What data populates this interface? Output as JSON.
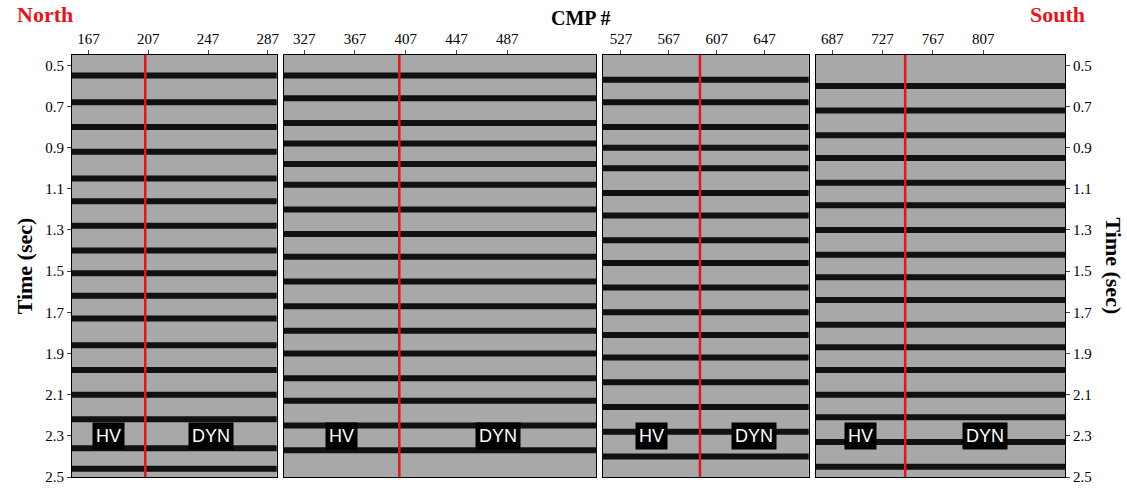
{
  "chart_data": {
    "type": "seismic_section",
    "title": "CMP #",
    "y_title": "Time (sec)",
    "north": "North",
    "south": "South",
    "color": "#e8141b",
    "ylim": [
      0.45,
      2.5
    ],
    "yticks": [
      0.5,
      0.7,
      0.9,
      1.1,
      1.3,
      1.5,
      1.7,
      1.9,
      2.1,
      2.3,
      2.5
    ],
    "panels": [
      {
        "xlim": [
          156,
          293
        ],
        "xticks": [
          167,
          207,
          247,
          287
        ],
        "boundary_cmp": 205,
        "labels": [
          "HV",
          "DYN"
        ],
        "reflector_times": [
          0.55,
          0.68,
          0.8,
          0.92,
          1.05,
          1.16,
          1.28,
          1.4,
          1.51,
          1.62,
          1.73,
          1.86,
          1.98,
          2.1,
          2.22,
          2.36,
          2.46
        ]
      },
      {
        "xlim": [
          311,
          557
        ],
        "xticks": [
          327,
          367,
          407,
          447,
          487
        ],
        "boundary_cmp": 402,
        "labels": [
          "HV",
          "DYN"
        ],
        "reflector_times": [
          0.55,
          0.66,
          0.78,
          0.88,
          0.98,
          1.08,
          1.2,
          1.32,
          1.43,
          1.55,
          1.67,
          1.79,
          1.9,
          2.02,
          2.13,
          2.25,
          2.37
        ]
      },
      {
        "xlim": [
          512,
          684
        ],
        "xticks": [
          527,
          567,
          607,
          647
        ],
        "boundary_cmp": 593,
        "labels": [
          "HV",
          "DYN"
        ],
        "reflector_times": [
          0.57,
          0.68,
          0.8,
          0.9,
          1.0,
          1.12,
          1.23,
          1.35,
          1.46,
          1.58,
          1.7,
          1.81,
          1.92,
          2.04,
          2.16,
          2.28,
          2.4
        ]
      },
      {
        "xlim": [
          674,
          872
        ],
        "xticks": [
          687,
          727,
          767,
          807
        ],
        "boundary_cmp": 745,
        "labels": [
          "HV",
          "DYN"
        ],
        "reflector_times": [
          0.6,
          0.72,
          0.84,
          0.95,
          1.07,
          1.18,
          1.3,
          1.42,
          1.53,
          1.64,
          1.76,
          1.87,
          1.98,
          2.1,
          2.21,
          2.33,
          2.45
        ]
      }
    ]
  }
}
